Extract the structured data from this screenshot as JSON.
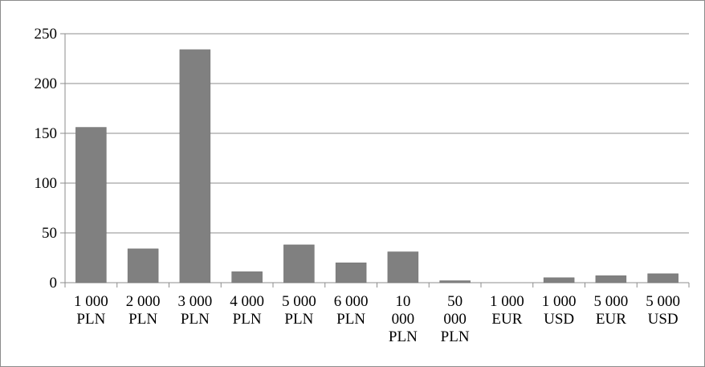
{
  "chart_data": {
    "type": "bar",
    "categories": [
      [
        "1 000",
        "PLN"
      ],
      [
        "2 000",
        "PLN"
      ],
      [
        "3 000",
        "PLN"
      ],
      [
        "4 000",
        "PLN"
      ],
      [
        "5 000",
        "PLN"
      ],
      [
        "6 000",
        "PLN"
      ],
      [
        "10",
        "000",
        "PLN"
      ],
      [
        "50",
        "000",
        "PLN"
      ],
      [
        "1 000",
        "EUR"
      ],
      [
        "1 000",
        "USD"
      ],
      [
        "5 000",
        "EUR"
      ],
      [
        "5 000",
        "USD"
      ]
    ],
    "values": [
      156,
      34,
      234,
      11,
      38,
      20,
      31,
      2,
      0,
      5,
      7,
      9
    ],
    "title": "",
    "xlabel": "",
    "ylabel": "",
    "ylim": [
      0,
      250
    ],
    "yticks": [
      "0",
      "50",
      "100",
      "150",
      "200",
      "250"
    ],
    "grid": true,
    "legend": "none",
    "colors": {
      "bar": "#808080",
      "bar_edge": "#6f6f6f",
      "gridline": "#8c8c8c",
      "axis": "#8c8c8c",
      "frame": "#8c8c8c"
    }
  }
}
